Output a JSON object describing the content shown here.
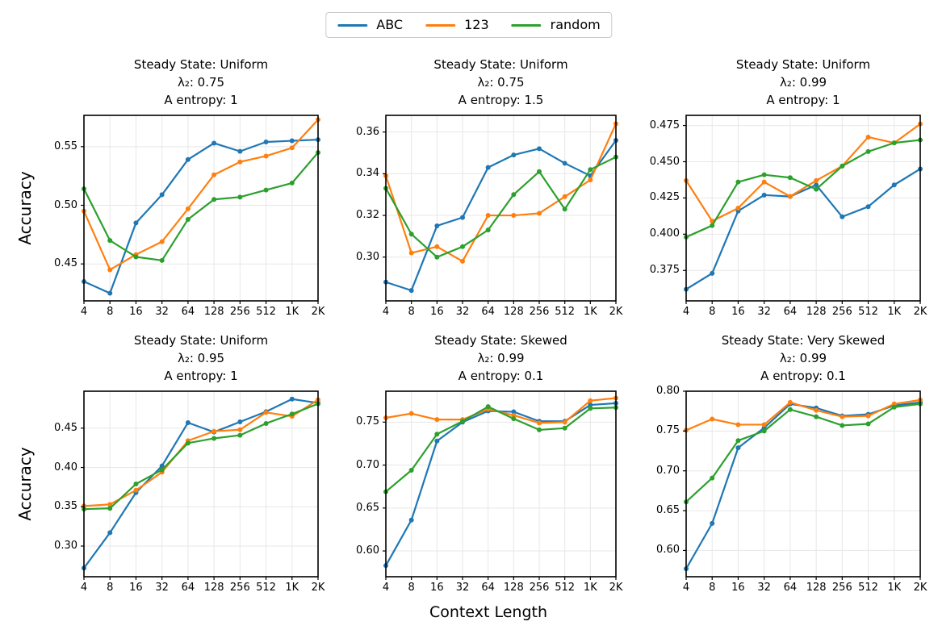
{
  "figure": {
    "xlabel": "Context Length",
    "ylabel": "Accuracy",
    "background": "#ffffff"
  },
  "legend": {
    "position": "top-center",
    "entries": [
      {
        "label": "ABC",
        "color": "#1f77b4"
      },
      {
        "label": "123",
        "color": "#ff7f0e"
      },
      {
        "label": "random",
        "color": "#2ca02c"
      }
    ]
  },
  "chart_data": {
    "type": "line",
    "layout": "2x3-grid",
    "x_scale": "log2",
    "grid": true,
    "markers": "circle",
    "x": [
      4,
      8,
      16,
      32,
      64,
      128,
      256,
      512,
      1024,
      2048
    ],
    "xticklabels": [
      "4",
      "8",
      "16",
      "32",
      "64",
      "128",
      "256",
      "512",
      "1K",
      "2K"
    ],
    "xlabel": "Context Length",
    "ylabel": "Accuracy",
    "subplots": [
      {
        "title_lines": [
          "Steady State: Uniform",
          "λ₂: 0.75",
          "A entropy: 1"
        ],
        "ylim": [
          0.4185,
          0.5767
        ],
        "yticks": [
          0.45,
          0.5,
          0.55
        ],
        "ytick_labels": [
          "0.45",
          "0.50",
          "0.55"
        ],
        "series": [
          {
            "name": "ABC",
            "values": [
              0.435,
              0.425,
              0.485,
              0.509,
              0.539,
              0.553,
              0.546,
              0.554,
              0.555,
              0.556
            ]
          },
          {
            "name": "123",
            "values": [
              0.495,
              0.445,
              0.458,
              0.469,
              0.497,
              0.526,
              0.537,
              0.542,
              0.549,
              0.573
            ]
          },
          {
            "name": "random",
            "values": [
              0.514,
              0.47,
              0.456,
              0.453,
              0.488,
              0.505,
              0.507,
              0.513,
              0.519,
              0.545
            ]
          }
        ]
      },
      {
        "title_lines": [
          "Steady State: Uniform",
          "λ₂: 0.75",
          "A entropy: 1.5"
        ],
        "ylim": [
          0.279,
          0.368
        ],
        "yticks": [
          0.3,
          0.32,
          0.34,
          0.36
        ],
        "ytick_labels": [
          "0.30",
          "0.32",
          "0.34",
          "0.36"
        ],
        "series": [
          {
            "name": "ABC",
            "values": [
              0.288,
              0.284,
              0.315,
              0.319,
              0.343,
              0.349,
              0.352,
              0.345,
              0.339,
              0.356
            ]
          },
          {
            "name": "123",
            "values": [
              0.339,
              0.302,
              0.305,
              0.298,
              0.32,
              0.32,
              0.321,
              0.329,
              0.337,
              0.364
            ]
          },
          {
            "name": "random",
            "values": [
              0.333,
              0.311,
              0.3,
              0.305,
              0.313,
              0.33,
              0.341,
              0.323,
              0.342,
              0.348
            ]
          }
        ]
      },
      {
        "title_lines": [
          "Steady State: Uniform",
          "λ₂: 0.99",
          "A entropy: 1"
        ],
        "ylim": [
          0.354,
          0.482
        ],
        "yticks": [
          0.375,
          0.4,
          0.425,
          0.45,
          0.475
        ],
        "ytick_labels": [
          "0.375",
          "0.400",
          "0.425",
          "0.450",
          "0.475"
        ],
        "series": [
          {
            "name": "ABC",
            "values": [
              0.362,
              0.373,
              0.416,
              0.427,
              0.426,
              0.434,
              0.412,
              0.419,
              0.434,
              0.445
            ]
          },
          {
            "name": "123",
            "values": [
              0.437,
              0.409,
              0.418,
              0.436,
              0.426,
              0.437,
              0.447,
              0.467,
              0.463,
              0.476
            ]
          },
          {
            "name": "random",
            "values": [
              0.398,
              0.406,
              0.436,
              0.441,
              0.439,
              0.431,
              0.447,
              0.457,
              0.463,
              0.465
            ]
          }
        ]
      },
      {
        "title_lines": [
          "Steady State: Uniform",
          "λ₂: 0.95",
          "A entropy: 1"
        ],
        "ylim": [
          0.261,
          0.497
        ],
        "yticks": [
          0.3,
          0.35,
          0.4,
          0.45
        ],
        "ytick_labels": [
          "0.30",
          "0.35",
          "0.40",
          "0.45"
        ],
        "series": [
          {
            "name": "ABC",
            "values": [
              0.272,
              0.317,
              0.368,
              0.402,
              0.457,
              0.445,
              0.458,
              0.471,
              0.487,
              0.482
            ]
          },
          {
            "name": "123",
            "values": [
              0.351,
              0.353,
              0.371,
              0.394,
              0.434,
              0.446,
              0.448,
              0.47,
              0.465,
              0.486
            ]
          },
          {
            "name": "random",
            "values": [
              0.347,
              0.348,
              0.379,
              0.397,
              0.431,
              0.437,
              0.441,
              0.456,
              0.468,
              0.481
            ]
          }
        ]
      },
      {
        "title_lines": [
          "Steady State: Skewed",
          "λ₂: 0.99",
          "A entropy: 0.1"
        ],
        "ylim": [
          0.57,
          0.786
        ],
        "yticks": [
          0.6,
          0.65,
          0.7,
          0.75
        ],
        "ytick_labels": [
          "0.60",
          "0.65",
          "0.70",
          "0.75"
        ],
        "series": [
          {
            "name": "ABC",
            "values": [
              0.583,
              0.636,
              0.728,
              0.75,
              0.763,
              0.762,
              0.751,
              0.751,
              0.77,
              0.772
            ]
          },
          {
            "name": "123",
            "values": [
              0.755,
              0.76,
              0.753,
              0.753,
              0.765,
              0.758,
              0.749,
              0.75,
              0.775,
              0.778
            ]
          },
          {
            "name": "random",
            "values": [
              0.669,
              0.694,
              0.736,
              0.751,
              0.768,
              0.754,
              0.741,
              0.743,
              0.766,
              0.767
            ]
          }
        ]
      },
      {
        "title_lines": [
          "Steady State: Very Skewed",
          "λ₂: 0.99",
          "A entropy: 0.1"
        ],
        "ylim": [
          0.567,
          0.8
        ],
        "yticks": [
          0.6,
          0.65,
          0.7,
          0.75,
          0.8
        ],
        "ytick_labels": [
          "0.60",
          "0.65",
          "0.70",
          "0.75",
          "0.80"
        ],
        "series": [
          {
            "name": "ABC",
            "values": [
              0.577,
              0.634,
              0.729,
              0.754,
              0.784,
              0.779,
              0.769,
              0.771,
              0.782,
              0.786
            ]
          },
          {
            "name": "123",
            "values": [
              0.751,
              0.765,
              0.758,
              0.758,
              0.786,
              0.776,
              0.768,
              0.769,
              0.784,
              0.789
            ]
          },
          {
            "name": "random",
            "values": [
              0.661,
              0.691,
              0.738,
              0.75,
              0.777,
              0.768,
              0.757,
              0.759,
              0.78,
              0.784
            ]
          }
        ]
      }
    ]
  }
}
